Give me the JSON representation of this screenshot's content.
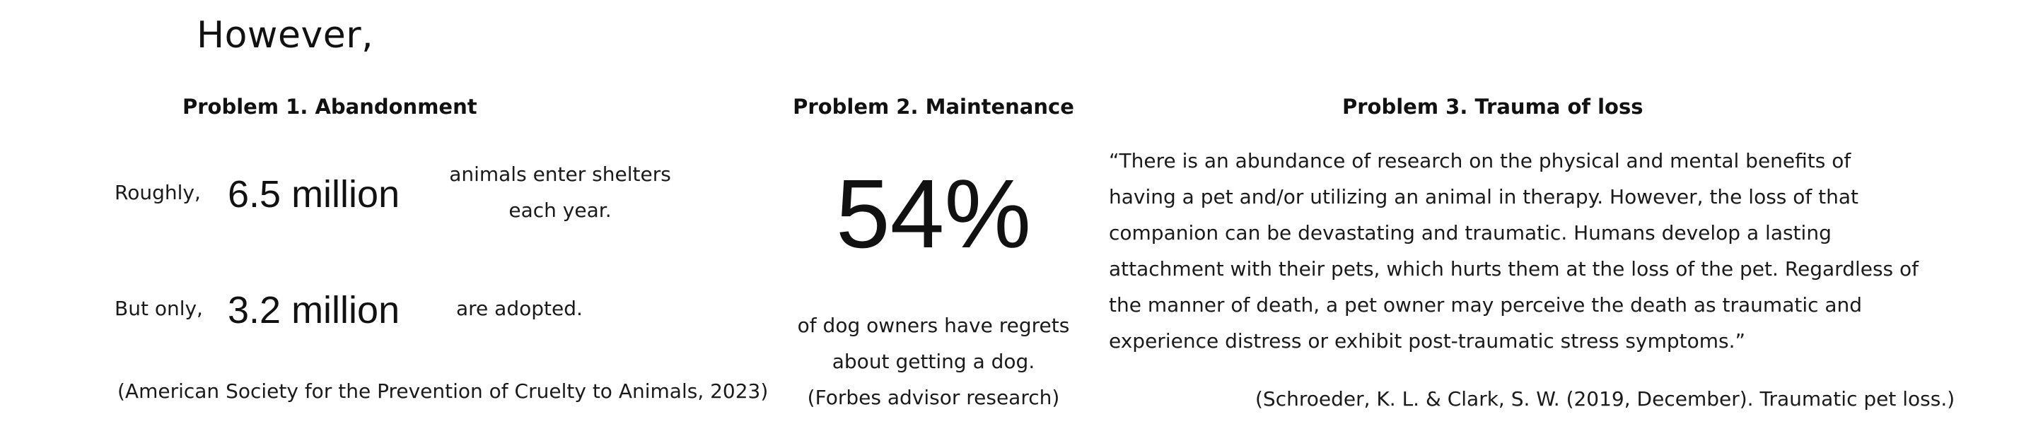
{
  "heading": "However,",
  "problem1": {
    "title": "Problem 1. Abandonment",
    "row1": {
      "prefix": "Roughly,",
      "value": "6.5 million",
      "suffix_line1": "animals enter shelters",
      "suffix_line2": "each year."
    },
    "row2": {
      "prefix": "But only,",
      "value": "3.2 million",
      "suffix": "are adopted."
    },
    "citation": "(American Society for the Prevention of Cruelty to Animals, 2023)"
  },
  "problem2": {
    "title": "Problem 2. Maintenance",
    "stat": "54%",
    "desc_line1": "of dog owners have regrets",
    "desc_line2": "about getting a dog.",
    "citation": "(Forbes advisor research)"
  },
  "problem3": {
    "title": "Problem 3. Trauma of loss",
    "quote_lines": [
      "“There is an abundance of research on the physical and mental benefits of",
      "having a pet and/or utilizing an animal in therapy. However, the loss of that",
      "companion can be devastating and traumatic. Humans develop a lasting",
      "attachment with their pets, which hurts them at the loss of the pet. Regardless of",
      "the manner of death, a pet owner may perceive the death as traumatic and",
      "experience distress or exhibit post-traumatic stress symptoms.”"
    ],
    "citation": "(Schroeder, K. L. & Clark, S. W. (2019, December). Traumatic pet loss.)"
  }
}
